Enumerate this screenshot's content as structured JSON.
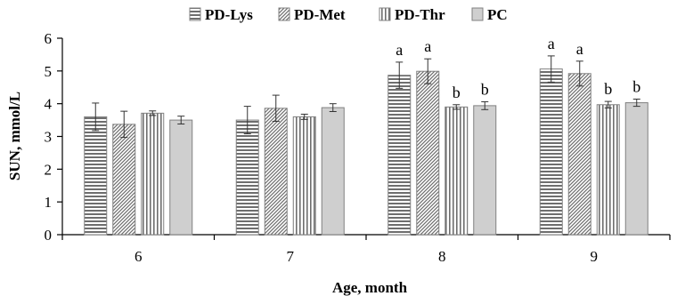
{
  "chart_data": {
    "type": "bar",
    "categories": [
      "6",
      "7",
      "8",
      "9"
    ],
    "xlabel": "Age, month",
    "ylabel": "SUN, mmol/L",
    "ylim": [
      0,
      6
    ],
    "yticks": [
      0,
      1,
      2,
      3,
      4,
      5,
      6
    ],
    "legend_position": "top-center",
    "grid": false,
    "series": [
      {
        "name": "PD-Lys",
        "pattern": "horizontal-lines",
        "values": [
          3.6,
          3.5,
          4.87,
          5.06
        ],
        "errors": [
          0.42,
          0.42,
          0.4,
          0.4
        ],
        "labels": [
          "",
          "",
          "a",
          "a"
        ]
      },
      {
        "name": "PD-Met",
        "pattern": "diagonal-lines",
        "values": [
          3.37,
          3.86,
          4.99,
          4.92
        ],
        "errors": [
          0.4,
          0.4,
          0.38,
          0.38
        ],
        "labels": [
          "",
          "",
          "a",
          "a"
        ]
      },
      {
        "name": "PD-Thr",
        "pattern": "vertical-lines",
        "values": [
          3.71,
          3.6,
          3.9,
          3.97
        ],
        "errors": [
          0.07,
          0.08,
          0.07,
          0.1
        ],
        "labels": [
          "",
          "",
          "b",
          "b"
        ]
      },
      {
        "name": "PC",
        "pattern": "solid-gray",
        "values": [
          3.5,
          3.88,
          3.94,
          4.03
        ],
        "errors": [
          0.12,
          0.12,
          0.12,
          0.11
        ],
        "labels": [
          "",
          "",
          "b",
          "b"
        ]
      }
    ],
    "colors": {
      "bar_fill": "#cfcfcf",
      "bar_pattern": "#6e6e6e",
      "bar_stroke": "#808080",
      "axis": "#000000"
    }
  }
}
